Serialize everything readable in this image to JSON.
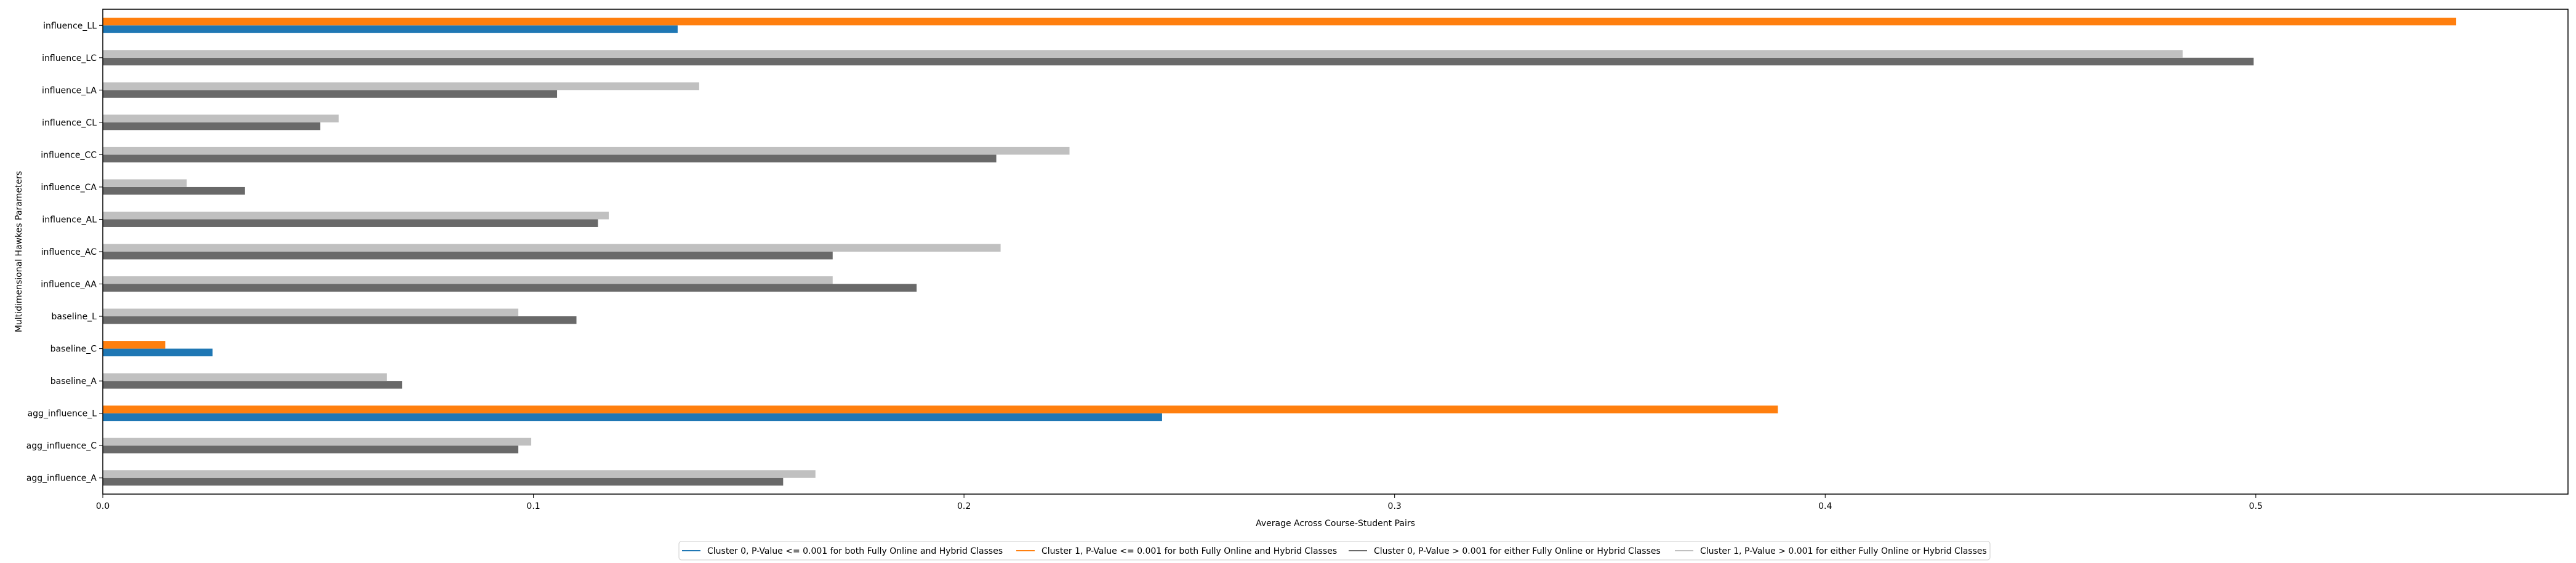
{
  "chart_data": {
    "type": "bar",
    "orientation": "horizontal",
    "title": "",
    "xlabel": "Average Across Course-Student Pairs",
    "ylabel": "Multidimensional Hawkes Parameters",
    "xlim": [
      0,
      0.5725
    ],
    "xticks": [
      0.0,
      0.1,
      0.2,
      0.3,
      0.4,
      0.5
    ],
    "xtick_labels": [
      "0.0",
      "0.1",
      "0.2",
      "0.3",
      "0.4",
      "0.5"
    ],
    "grid": false,
    "legend_position": "bottom-center",
    "categories": [
      "agg_influence_A",
      "agg_influence_C",
      "agg_influence_L",
      "baseline_A",
      "baseline_C",
      "baseline_L",
      "influence_AA",
      "influence_AC",
      "influence_AL",
      "influence_CA",
      "influence_CC",
      "influence_CL",
      "influence_LA",
      "influence_LC",
      "influence_LL"
    ],
    "series": [
      {
        "name": "Cluster 0, P-Value <= 0.001 for both Fully Online and Hybrid Classes",
        "color": "#1f77b4",
        "values": [
          null,
          null,
          0.246,
          null,
          0.0255,
          null,
          null,
          null,
          null,
          null,
          null,
          null,
          null,
          null,
          0.1335
        ]
      },
      {
        "name": "Cluster 1, P-Value <= 0.001 for both Fully Online and Hybrid Classes",
        "color": "#ff7f0e",
        "values": [
          null,
          null,
          0.389,
          null,
          0.0145,
          null,
          null,
          null,
          null,
          null,
          null,
          null,
          null,
          null,
          0.5465
        ]
      },
      {
        "name": "Cluster 0, P-Value > 0.001 for either Fully Online or Hybrid Classes",
        "color": "#696969",
        "values": [
          0.158,
          0.0965,
          null,
          0.0695,
          null,
          0.11,
          0.189,
          0.1695,
          0.115,
          0.033,
          0.2075,
          0.0505,
          0.1055,
          0.4995,
          null
        ]
      },
      {
        "name": "Cluster 1, P-Value > 0.001 for either Fully Online or Hybrid Classes",
        "color": "#c0c0c0",
        "values": [
          0.1655,
          0.0995,
          null,
          0.066,
          null,
          0.0965,
          0.1695,
          0.2085,
          0.1175,
          0.0195,
          0.2245,
          0.0548,
          0.1385,
          0.483,
          null
        ]
      }
    ]
  }
}
